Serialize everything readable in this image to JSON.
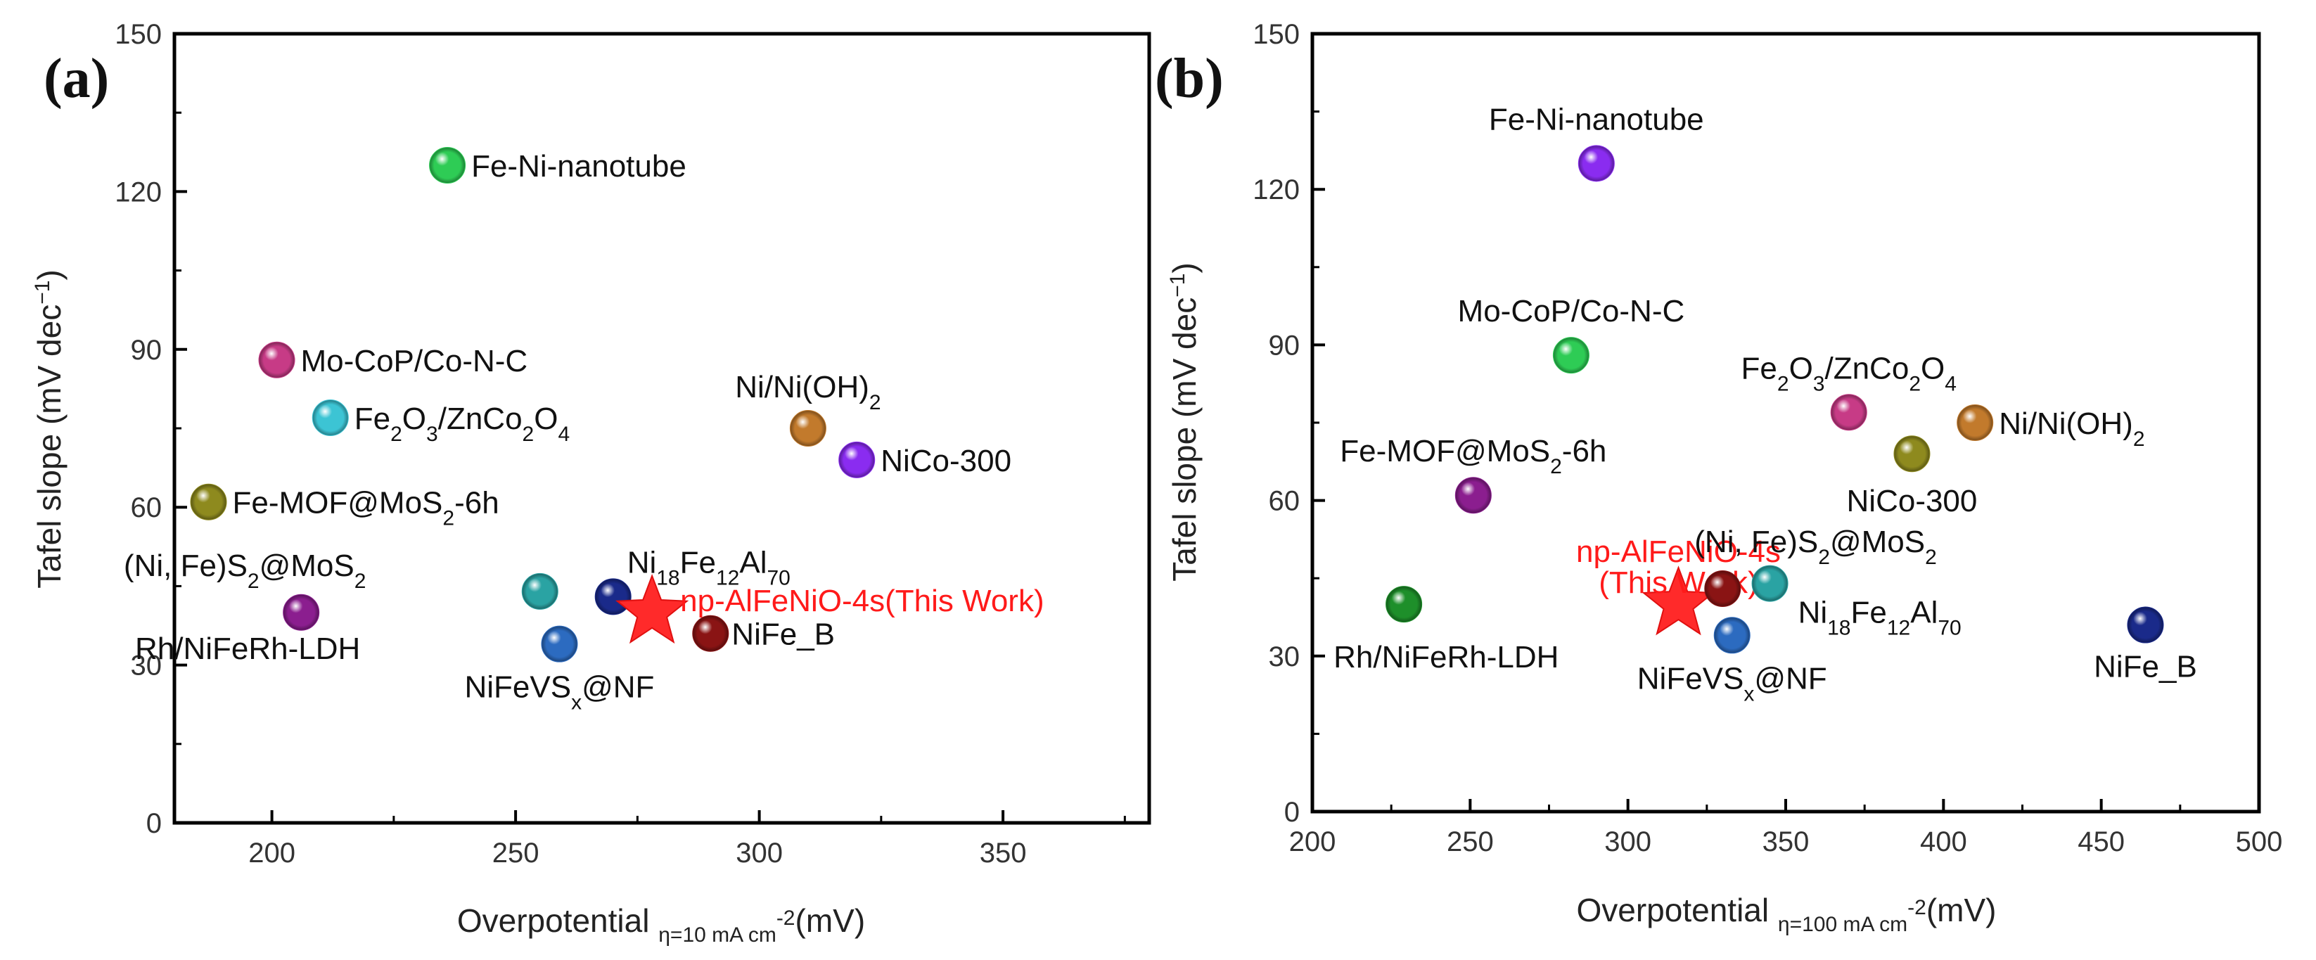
{
  "chart_data": [
    {
      "type": "scatter",
      "panel": "(a)",
      "xlim": [
        180,
        380
      ],
      "ylim": [
        0,
        150
      ],
      "xticks": [
        200,
        250,
        300,
        350
      ],
      "yticks": [
        0,
        30,
        60,
        90,
        120,
        150
      ],
      "ylabel": "Tafel slope (mV dec",
      "ylabel_sup": "−1",
      "ylabel_end": ")",
      "xlabel": "Overpotential",
      "xlabel_sub": "η=10 mA cm",
      "xlabel_sub_sup": "-2",
      "xlabel_end": "(mV)",
      "points": [
        {
          "name": "Fe-Ni-nanotube",
          "x": 236,
          "y": 125,
          "color": "#2ecc55",
          "marker": "sphere",
          "label_pos": "right",
          "parts": [
            {
              "t": "Fe-Ni-nanotube"
            }
          ]
        },
        {
          "name": "Mo-CoP/Co-N-C",
          "x": 201,
          "y": 88,
          "color": "#c73b86",
          "marker": "sphere",
          "label_pos": "right",
          "parts": [
            {
              "t": "Mo-CoP/Co-N-C"
            }
          ]
        },
        {
          "name": "Fe2O3/ZnCo2O4",
          "x": 212,
          "y": 77,
          "color": "#3cc4d4",
          "marker": "sphere",
          "label_pos": "right",
          "parts": [
            {
              "t": "Fe"
            },
            {
              "t": "2",
              "s": "sub"
            },
            {
              "t": "O"
            },
            {
              "t": "3",
              "s": "sub"
            },
            {
              "t": "/ZnCo"
            },
            {
              "t": "2",
              "s": "sub"
            },
            {
              "t": "O"
            },
            {
              "t": "4",
              "s": "sub"
            }
          ]
        },
        {
          "name": "Fe-MOF@MoS2-6h",
          "x": 187,
          "y": 61,
          "color": "#8e8a1e",
          "marker": "sphere",
          "label_pos": "right",
          "parts": [
            {
              "t": "Fe-MOF@MoS"
            },
            {
              "t": "2",
              "s": "sub"
            },
            {
              "t": "-6h"
            }
          ]
        },
        {
          "name": "(Ni, Fe)S2@MoS2",
          "x": 206,
          "y": 40,
          "color": "#8b1e8f",
          "marker": "sphere",
          "label_pos": "above-left",
          "parts": [
            {
              "t": "(Ni, Fe)S"
            },
            {
              "t": "2",
              "s": "sub"
            },
            {
              "t": "@MoS"
            },
            {
              "t": "2",
              "s": "sub"
            }
          ]
        },
        {
          "name": "Rh/NiFeRh-LDH",
          "x": 206,
          "y": 40,
          "color": "#8b1e8f",
          "marker": "none",
          "label_pos": "below-left",
          "parts": [
            {
              "t": "Rh/NiFeRh-LDH"
            }
          ]
        },
        {
          "name": "Ni/Ni(OH)2",
          "x": 310,
          "y": 75,
          "color": "#c27a2c",
          "marker": "sphere",
          "label_pos": "above",
          "parts": [
            {
              "t": "Ni/Ni(OH)"
            },
            {
              "t": "2",
              "s": "sub"
            }
          ]
        },
        {
          "name": "NiCo-300",
          "x": 320,
          "y": 69,
          "color": "#8a2cf0",
          "marker": "sphere",
          "label_pos": "right",
          "parts": [
            {
              "t": "NiCo-300"
            }
          ]
        },
        {
          "name": "Ni18Fe12Al70",
          "x": 255,
          "y": 44,
          "color": "#2aa3a3",
          "marker": "sphere",
          "label_pos": "none",
          "parts": []
        },
        {
          "name": "Ni18Fe12Al70 (navy)",
          "x": 270,
          "y": 43,
          "color": "#1a2a8a",
          "marker": "sphere",
          "label_pos": "above",
          "parts": [
            {
              "t": "Ni"
            },
            {
              "t": "18",
              "s": "sub"
            },
            {
              "t": "Fe"
            },
            {
              "t": "12",
              "s": "sub"
            },
            {
              "t": "Al"
            },
            {
              "t": "70",
              "s": "sub"
            }
          ]
        },
        {
          "name": "NiFeVSx@NF",
          "x": 259,
          "y": 34,
          "color": "#2c6bc0",
          "marker": "sphere",
          "label_pos": "below",
          "parts": [
            {
              "t": "NiFeVS"
            },
            {
              "t": "x",
              "s": "sub"
            },
            {
              "t": "@NF"
            }
          ]
        },
        {
          "name": "np-AlFeNiO-4s(This Work)",
          "x": 278,
          "y": 40,
          "color": "#ff2a2a",
          "marker": "star",
          "label_pos": "right-up",
          "highlight": true,
          "parts": [
            {
              "t": "np-AlFeNiO-4s(This Work)"
            }
          ]
        },
        {
          "name": "NiFe_B",
          "x": 290,
          "y": 36,
          "color": "#8a1414",
          "marker": "sphere",
          "label_pos": "right",
          "parts": [
            {
              "t": "NiFe_B"
            }
          ]
        }
      ]
    },
    {
      "type": "scatter",
      "panel": "(b)",
      "xlim": [
        200,
        500
      ],
      "ylim": [
        0,
        150
      ],
      "xticks": [
        200,
        250,
        300,
        350,
        400,
        450,
        500
      ],
      "yticks": [
        0,
        30,
        60,
        90,
        120,
        150
      ],
      "ylabel": "Tafel slope (mV dec",
      "ylabel_sup": "−1",
      "ylabel_end": ")",
      "xlabel": "Overpotential",
      "xlabel_sub": "η=100 mA cm",
      "xlabel_sub_sup": "-2",
      "xlabel_end": "(mV)",
      "points": [
        {
          "name": "Fe-Ni-nanotube",
          "x": 290,
          "y": 125,
          "color": "#8a2cf0",
          "marker": "sphere",
          "label_pos": "above",
          "parts": [
            {
              "t": "Fe-Ni-nanotube"
            }
          ]
        },
        {
          "name": "Mo-CoP/Co-N-C",
          "x": 282,
          "y": 88,
          "color": "#2ecc55",
          "marker": "sphere",
          "label_pos": "above",
          "parts": [
            {
              "t": "Mo-CoP/Co-N-C"
            }
          ]
        },
        {
          "name": "Fe2O3/ZnCo2O4",
          "x": 370,
          "y": 77,
          "color": "#c73b86",
          "marker": "sphere",
          "label_pos": "above",
          "parts": [
            {
              "t": "Fe"
            },
            {
              "t": "2",
              "s": "sub"
            },
            {
              "t": "O"
            },
            {
              "t": "3",
              "s": "sub"
            },
            {
              "t": "/ZnCo"
            },
            {
              "t": "2",
              "s": "sub"
            },
            {
              "t": "O"
            },
            {
              "t": "4",
              "s": "sub"
            }
          ]
        },
        {
          "name": "NiCo-300",
          "x": 390,
          "y": 69,
          "color": "#8e8a1e",
          "marker": "sphere",
          "label_pos": "below",
          "parts": [
            {
              "t": "NiCo-300"
            }
          ]
        },
        {
          "name": "Ni/Ni(OH)2",
          "x": 410,
          "y": 75,
          "color": "#c27a2c",
          "marker": "sphere",
          "label_pos": "right",
          "parts": [
            {
              "t": "Ni/Ni(OH)"
            },
            {
              "t": "2",
              "s": "sub"
            }
          ]
        },
        {
          "name": "Fe-MOF@MoS2-6h",
          "x": 251,
          "y": 61,
          "color": "#8b1e8f",
          "marker": "sphere",
          "label_pos": "above",
          "parts": [
            {
              "t": "Fe-MOF@MoS"
            },
            {
              "t": "2",
              "s": "sub"
            },
            {
              "t": "-6h"
            }
          ]
        },
        {
          "name": "Rh/NiFeRh-LDH",
          "x": 229,
          "y": 40,
          "color": "#1e8f2a",
          "marker": "sphere",
          "label_pos": "below-right",
          "parts": [
            {
              "t": "Rh/NiFeRh-LDH"
            }
          ]
        },
        {
          "name": "np-AlFeNiO-4s (This Work)",
          "x": 316,
          "y": 40,
          "color": "#ff2a2a",
          "marker": "star",
          "label_pos": "above-twoline",
          "highlight": true,
          "parts": [
            {
              "t": "np-AlFeNiO-4s"
            }
          ],
          "parts2": [
            {
              "t": "(This Work)"
            }
          ]
        },
        {
          "name": "(Ni, Fe)S2@MoS2",
          "x": 330,
          "y": 43,
          "color": "#8a1414",
          "marker": "sphere",
          "label_pos": "above-right",
          "parts": [
            {
              "t": "(Ni, Fe)S"
            },
            {
              "t": "2",
              "s": "sub"
            },
            {
              "t": "@MoS"
            },
            {
              "t": "2",
              "s": "sub"
            }
          ]
        },
        {
          "name": "Ni18Fe12Al70",
          "x": 345,
          "y": 44,
          "color": "#2aa3a3",
          "marker": "sphere",
          "label_pos": "below-right",
          "parts": [
            {
              "t": "Ni"
            },
            {
              "t": "18",
              "s": "sub"
            },
            {
              "t": "Fe"
            },
            {
              "t": "12",
              "s": "sub"
            },
            {
              "t": "Al"
            },
            {
              "t": "70",
              "s": "sub"
            }
          ]
        },
        {
          "name": "NiFeVSx@NF",
          "x": 333,
          "y": 34,
          "color": "#2c6bc0",
          "marker": "sphere",
          "label_pos": "below",
          "parts": [
            {
              "t": "NiFeVS"
            },
            {
              "t": "x",
              "s": "sub"
            },
            {
              "t": "@NF"
            }
          ]
        },
        {
          "name": "NiFe_B",
          "x": 464,
          "y": 36,
          "color": "#1a2a8a",
          "marker": "sphere",
          "label_pos": "below",
          "parts": [
            {
              "t": "NiFe_B"
            }
          ]
        }
      ]
    }
  ]
}
